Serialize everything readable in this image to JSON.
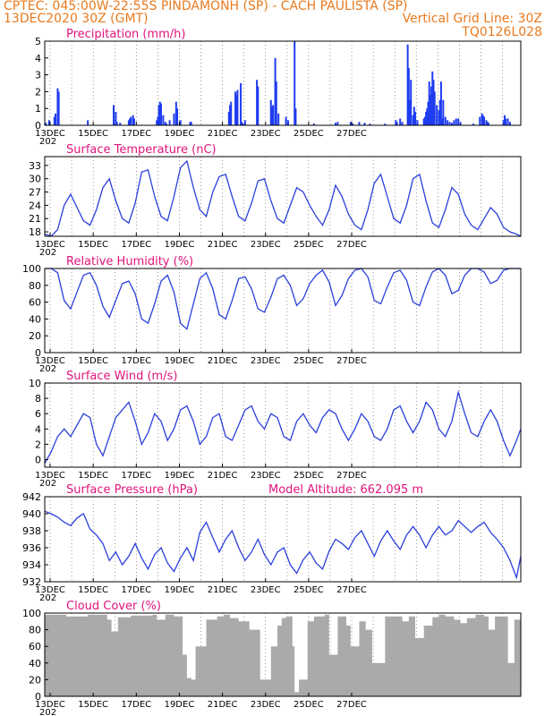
{
  "header": {
    "line1_left": "CPTEC:   045:00W-22:55S   PINDAMONH (SP) - CACH PAULISTA (SP)",
    "line2_left": "13DEC2020 30Z (GMT)",
    "line2_right": "Vertical Grid Line: 30Z",
    "line3_right": "TQ0126L028"
  },
  "colors": {
    "line": "#2a3fdc",
    "bar": "#1f3cf0",
    "cloud": "#aaaaaa",
    "title": "#e0147c",
    "header": "#e87a1e"
  },
  "x_axis": {
    "ticks": [
      "13DEC",
      "15DEC",
      "17DEC",
      "19DEC",
      "21DEC",
      "23DEC",
      "25DEC",
      "27DEC"
    ],
    "first_tick_sub": "202"
  },
  "chart_data": [
    {
      "type": "bar",
      "title": "Precipitation (mm/h)",
      "ylim": [
        0,
        5
      ],
      "yticks": [
        0,
        1,
        2,
        3,
        4,
        5
      ],
      "x": [
        0.05,
        0.2,
        0.45,
        0.5,
        0.6,
        0.65,
        2.0,
        3.2,
        3.3,
        3.35,
        3.5,
        3.9,
        3.95,
        4.0,
        4.1,
        4.15,
        5.2,
        5.25,
        5.3,
        5.35,
        5.4,
        5.5,
        5.6,
        5.65,
        5.8,
        6.0,
        6.1,
        6.15,
        6.3,
        6.75,
        6.8,
        8.55,
        8.6,
        8.65,
        8.85,
        8.9,
        8.95,
        9.1,
        9.15,
        9.2,
        9.3,
        9.85,
        9.9,
        10.5,
        10.55,
        10.6,
        10.7,
        10.75,
        10.85,
        11.2,
        11.3,
        11.6,
        11.65,
        12.5,
        13.5,
        13.6,
        14.2,
        14.3,
        14.6,
        14.85,
        15.1,
        15.8,
        16.3,
        16.35,
        16.5,
        16.6,
        16.85,
        16.9,
        16.95,
        17.0,
        17.1,
        17.15,
        17.2,
        17.3,
        17.6,
        17.65,
        17.7,
        17.75,
        17.8,
        17.85,
        17.9,
        17.95,
        18.0,
        18.05,
        18.1,
        18.2,
        18.3,
        18.35,
        18.4,
        18.45,
        18.5,
        18.6,
        18.7,
        18.8,
        18.9,
        19.0,
        19.1,
        19.2,
        19.3,
        19.9,
        20.2,
        20.3,
        20.35,
        20.4,
        20.5,
        20.55,
        20.6,
        21.3,
        21.35,
        21.4,
        21.5,
        21.6
      ],
      "values": [
        0.15,
        0.3,
        0.5,
        0.7,
        2.2,
        2.0,
        0.3,
        1.2,
        0.8,
        0.2,
        0.15,
        0.3,
        0.4,
        0.5,
        0.6,
        0.4,
        0.3,
        0.5,
        1.2,
        1.4,
        1.3,
        0.6,
        0.2,
        0.1,
        0.3,
        0.7,
        1.4,
        1.0,
        0.3,
        0.2,
        0.2,
        0.8,
        1.2,
        1.4,
        2.0,
        1.8,
        2.1,
        2.5,
        0.2,
        0.1,
        0.3,
        2.7,
        2.3,
        1.5,
        1.1,
        1.2,
        4.0,
        2.6,
        0.7,
        0.5,
        0.3,
        5.0,
        1.0,
        0.1,
        0.15,
        0.2,
        0.2,
        0.1,
        0.2,
        0.15,
        0.1,
        0.1,
        0.3,
        0.2,
        0.4,
        0.2,
        4.8,
        3.4,
        1.5,
        2.7,
        0.6,
        1.1,
        0.8,
        0.3,
        0.4,
        0.5,
        0.8,
        1.0,
        1.4,
        2.6,
        1.8,
        2.3,
        3.2,
        2.7,
        2.0,
        1.2,
        0.9,
        1.5,
        2.6,
        0.4,
        1.5,
        0.5,
        0.3,
        0.2,
        0.15,
        0.3,
        0.4,
        0.4,
        0.2,
        0.1,
        0.5,
        0.7,
        0.6,
        0.5,
        0.3,
        0.2,
        0.15,
        0.3,
        0.6,
        0.4,
        0.4,
        0.2
      ],
      "xlim": [
        0,
        22.1
      ]
    },
    {
      "type": "line",
      "title": "Surface Temperature (nC)",
      "ylim": [
        17,
        35
      ],
      "yticks": [
        18,
        21,
        24,
        27,
        30,
        33
      ],
      "x": [
        0,
        0.3,
        0.6,
        0.9,
        1.2,
        1.5,
        1.8,
        2.1,
        2.4,
        2.7,
        3.0,
        3.3,
        3.6,
        3.9,
        4.2,
        4.5,
        4.8,
        5.1,
        5.4,
        5.7,
        6.0,
        6.3,
        6.6,
        6.9,
        7.2,
        7.5,
        7.8,
        8.1,
        8.4,
        8.7,
        9.0,
        9.3,
        9.6,
        9.9,
        10.2,
        10.5,
        10.8,
        11.1,
        11.4,
        11.7,
        12.0,
        12.3,
        12.6,
        12.9,
        13.2,
        13.5,
        13.8,
        14.1,
        14.4,
        14.7,
        15.0,
        15.3,
        15.6,
        15.9,
        16.2,
        16.5,
        16.8,
        17.1,
        17.4,
        17.7,
        18.0,
        18.3,
        18.6,
        18.9,
        19.2,
        19.5,
        19.8,
        20.1,
        20.4,
        20.7,
        21.0,
        21.3,
        21.6,
        21.9,
        22.1
      ],
      "values": [
        17.5,
        17.0,
        18.5,
        24.0,
        26.5,
        23.5,
        20.5,
        19.5,
        23.0,
        28.0,
        30.0,
        25.0,
        21.0,
        20.0,
        24.5,
        31.5,
        32.0,
        26.0,
        21.5,
        20.5,
        26.0,
        32.5,
        34.0,
        28.0,
        23.0,
        21.5,
        27.0,
        30.5,
        31.0,
        26.0,
        21.5,
        20.5,
        24.5,
        29.5,
        30.0,
        25.0,
        21.0,
        20.0,
        24.0,
        28.0,
        27.0,
        24.0,
        21.5,
        19.5,
        23.0,
        28.5,
        26.0,
        22.0,
        19.5,
        18.5,
        23.0,
        29.0,
        31.0,
        26.0,
        21.0,
        20.0,
        24.0,
        30.0,
        31.0,
        25.0,
        20.0,
        19.0,
        23.0,
        28.0,
        26.5,
        22.0,
        19.5,
        18.5,
        21.0,
        23.5,
        22.0,
        19.0,
        18.0,
        17.5,
        17.0
      ],
      "xlim": [
        0,
        22.1
      ]
    },
    {
      "type": "line",
      "title": "Relative Humidity (%)",
      "ylim": [
        0,
        100
      ],
      "yticks": [
        0,
        20,
        40,
        60,
        80,
        100
      ],
      "x": [
        0,
        0.3,
        0.6,
        0.9,
        1.2,
        1.5,
        1.8,
        2.1,
        2.4,
        2.7,
        3.0,
        3.3,
        3.6,
        3.9,
        4.2,
        4.5,
        4.8,
        5.1,
        5.4,
        5.7,
        6.0,
        6.3,
        6.6,
        6.9,
        7.2,
        7.5,
        7.8,
        8.1,
        8.4,
        8.7,
        9.0,
        9.3,
        9.6,
        9.9,
        10.2,
        10.5,
        10.8,
        11.1,
        11.4,
        11.7,
        12.0,
        12.3,
        12.6,
        12.9,
        13.2,
        13.5,
        13.8,
        14.1,
        14.4,
        14.7,
        15.0,
        15.3,
        15.6,
        15.9,
        16.2,
        16.5,
        16.8,
        17.1,
        17.4,
        17.7,
        18.0,
        18.3,
        18.6,
        18.9,
        19.2,
        19.5,
        19.8,
        20.1,
        20.4,
        20.7,
        21.0,
        21.3,
        21.6,
        21.9,
        22.1
      ],
      "values": [
        100,
        100,
        95,
        62,
        52,
        72,
        92,
        95,
        80,
        55,
        42,
        62,
        82,
        85,
        70,
        40,
        35,
        58,
        85,
        92,
        72,
        35,
        28,
        58,
        88,
        95,
        76,
        45,
        40,
        62,
        88,
        90,
        76,
        52,
        48,
        66,
        88,
        92,
        80,
        56,
        64,
        82,
        92,
        98,
        84,
        56,
        68,
        88,
        98,
        100,
        90,
        62,
        58,
        78,
        95,
        98,
        86,
        60,
        56,
        78,
        96,
        100,
        92,
        70,
        74,
        92,
        100,
        100,
        96,
        82,
        86,
        98,
        100,
        100,
        100
      ],
      "xlim": [
        0,
        22.1
      ]
    },
    {
      "type": "line",
      "title": "Surface Wind (m/s)",
      "ylim": [
        -1,
        10
      ],
      "yticks": [
        0,
        2,
        4,
        6,
        8,
        10
      ],
      "x": [
        0,
        0.3,
        0.6,
        0.9,
        1.2,
        1.5,
        1.8,
        2.1,
        2.4,
        2.7,
        3.0,
        3.3,
        3.6,
        3.9,
        4.2,
        4.5,
        4.8,
        5.1,
        5.4,
        5.7,
        6.0,
        6.3,
        6.6,
        6.9,
        7.2,
        7.5,
        7.8,
        8.1,
        8.4,
        8.7,
        9.0,
        9.3,
        9.6,
        9.9,
        10.2,
        10.5,
        10.8,
        11.1,
        11.4,
        11.7,
        12.0,
        12.3,
        12.6,
        12.9,
        13.2,
        13.5,
        13.8,
        14.1,
        14.4,
        14.7,
        15.0,
        15.3,
        15.6,
        15.9,
        16.2,
        16.5,
        16.8,
        17.1,
        17.4,
        17.7,
        18.0,
        18.3,
        18.6,
        18.9,
        19.2,
        19.5,
        19.8,
        20.1,
        20.4,
        20.7,
        21.0,
        21.3,
        21.6,
        21.9,
        22.1
      ],
      "values": [
        -0.5,
        1.0,
        3.0,
        4.0,
        3.0,
        4.5,
        6.0,
        5.5,
        2.0,
        0.5,
        3.0,
        5.5,
        6.5,
        7.5,
        5.0,
        2.0,
        3.5,
        6.0,
        5.0,
        2.5,
        4.0,
        6.5,
        7.0,
        5.0,
        2.0,
        3.0,
        5.5,
        6.0,
        3.0,
        2.5,
        4.5,
        6.5,
        7.0,
        5.0,
        4.0,
        6.0,
        5.5,
        3.0,
        2.5,
        5.0,
        6.0,
        4.5,
        3.5,
        5.5,
        6.5,
        6.0,
        4.0,
        2.5,
        4.0,
        6.0,
        5.0,
        3.0,
        2.5,
        4.0,
        6.5,
        7.0,
        5.0,
        3.5,
        5.0,
        7.5,
        6.5,
        4.0,
        3.0,
        5.0,
        8.8,
        6.0,
        3.5,
        3.0,
        5.0,
        6.5,
        5.0,
        2.5,
        0.5,
        2.5,
        4.0
      ],
      "xlim": [
        0,
        22.1
      ]
    },
    {
      "type": "line",
      "title": "Surface Pressure (hPa)",
      "annotation": "Model Altitude: 662.095  m",
      "ylim": [
        932,
        942
      ],
      "yticks": [
        932,
        934,
        936,
        938,
        940,
        942
      ],
      "x": [
        0,
        0.3,
        0.6,
        0.9,
        1.2,
        1.5,
        1.8,
        2.1,
        2.4,
        2.7,
        3.0,
        3.3,
        3.6,
        3.9,
        4.2,
        4.5,
        4.8,
        5.1,
        5.4,
        5.7,
        6.0,
        6.3,
        6.6,
        6.9,
        7.2,
        7.5,
        7.8,
        8.1,
        8.4,
        8.7,
        9.0,
        9.3,
        9.6,
        9.9,
        10.2,
        10.5,
        10.8,
        11.1,
        11.4,
        11.7,
        12.0,
        12.3,
        12.6,
        12.9,
        13.2,
        13.5,
        13.8,
        14.1,
        14.4,
        14.7,
        15.0,
        15.3,
        15.6,
        15.9,
        16.2,
        16.5,
        16.8,
        17.1,
        17.4,
        17.7,
        18.0,
        18.3,
        18.6,
        18.9,
        19.2,
        19.5,
        19.8,
        20.1,
        20.4,
        20.7,
        21.0,
        21.3,
        21.6,
        21.9,
        22.1
      ],
      "values": [
        940.3,
        940.0,
        939.6,
        939.0,
        938.6,
        939.5,
        940.0,
        938.2,
        937.5,
        936.5,
        934.5,
        935.5,
        934.0,
        935.0,
        936.5,
        934.8,
        933.5,
        935.2,
        936.0,
        934.2,
        933.2,
        934.8,
        936.0,
        934.5,
        937.8,
        939.0,
        937.2,
        935.5,
        937.0,
        938.0,
        936.0,
        934.5,
        935.5,
        937.0,
        935.2,
        934.0,
        935.5,
        936.0,
        934.0,
        933.0,
        934.6,
        935.5,
        934.2,
        933.5,
        935.6,
        937.0,
        936.5,
        935.8,
        937.2,
        938.0,
        936.5,
        935.0,
        936.8,
        938.0,
        936.8,
        935.8,
        937.5,
        938.5,
        937.5,
        936.0,
        937.5,
        938.5,
        937.5,
        938.0,
        939.2,
        938.5,
        937.8,
        938.5,
        939.0,
        937.8,
        937.0,
        936.0,
        934.5,
        932.5,
        935.0
      ],
      "xlim": [
        0,
        22.1
      ]
    },
    {
      "type": "area",
      "title": "Cloud Cover (%)",
      "ylim": [
        0,
        100
      ],
      "yticks": [
        0,
        20,
        40,
        60,
        80,
        100
      ],
      "x": [
        0,
        1.0,
        2.0,
        2.9,
        3.1,
        3.4,
        4.0,
        5.0,
        5.2,
        5.6,
        6.0,
        6.4,
        6.6,
        6.8,
        7.0,
        7.5,
        8.0,
        8.3,
        8.6,
        9.0,
        9.5,
        10.0,
        10.5,
        10.8,
        11.0,
        11.2,
        11.5,
        11.6,
        11.8,
        12.2,
        12.5,
        13.0,
        13.2,
        13.3,
        13.6,
        14.0,
        14.2,
        14.4,
        14.6,
        14.9,
        15.2,
        15.8,
        16.3,
        16.6,
        16.9,
        17.2,
        17.6,
        18.0,
        18.3,
        18.6,
        19.0,
        19.3,
        19.6,
        20.0,
        20.4,
        20.6,
        20.9,
        21.2,
        21.5,
        21.8,
        22.1
      ],
      "values": [
        98,
        96,
        98,
        92,
        78,
        95,
        97,
        98,
        92,
        98,
        96,
        50,
        22,
        20,
        60,
        92,
        96,
        98,
        94,
        90,
        80,
        20,
        60,
        85,
        94,
        96,
        60,
        5,
        20,
        90,
        96,
        98,
        50,
        50,
        96,
        85,
        60,
        60,
        90,
        80,
        40,
        96,
        96,
        90,
        96,
        70,
        85,
        95,
        98,
        96,
        92,
        88,
        94,
        98,
        96,
        80,
        96,
        96,
        40,
        92,
        96
      ],
      "xlim": [
        0,
        22.1
      ]
    }
  ]
}
